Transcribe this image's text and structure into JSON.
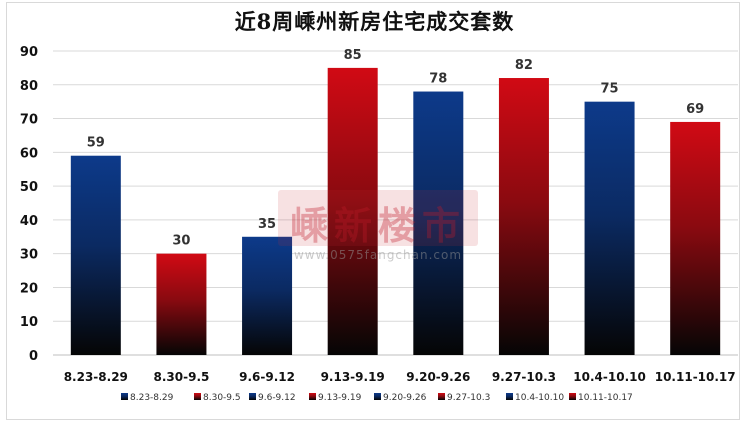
{
  "chart_data": {
    "type": "bar",
    "title": "近8周嵊州新房住宅成交套数",
    "categories": [
      "8.23-8.29",
      "8.30-9.5",
      "9.6-9.12",
      "9.13-9.19",
      "9.20-9.26",
      "9.27-10.3",
      "10.4-10.10",
      "10.11-10.17"
    ],
    "values": [
      59,
      30,
      35,
      85,
      78,
      82,
      75,
      69
    ],
    "data_labels": [
      "59",
      "30",
      "35",
      "85",
      "78",
      "82",
      "75",
      "69"
    ],
    "ylim": [
      0,
      90
    ],
    "y_ticks": [
      "0",
      "10",
      "20",
      "30",
      "40",
      "50",
      "60",
      "70",
      "80",
      "90"
    ],
    "xlabel": "",
    "ylabel": "",
    "grid": true,
    "legend_position": "bottom",
    "legend_entries": [
      "8.23-8.29",
      "8.30-9.5",
      "9.6-9.12",
      "9.13-9.19",
      "9.20-9.26",
      "9.27-10.3",
      "10.4-10.10",
      "10.11-10.17"
    ],
    "bar_colors": [
      "blue",
      "red",
      "blue",
      "red",
      "blue",
      "red",
      "blue",
      "red"
    ],
    "colors": {
      "blue_top": "#0d3a8a",
      "red_top": "#d10a14",
      "bottom": "#050505",
      "grid": "#d9d9d9"
    }
  },
  "watermark": {
    "logo_text": "嵊新楼市",
    "url": "www.0575fangchan.com"
  }
}
